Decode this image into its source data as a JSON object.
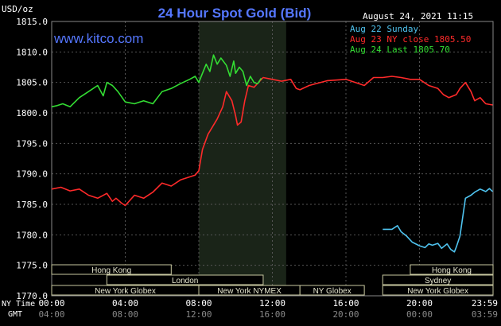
{
  "header": {
    "unit": "USD/oz",
    "title": "24 Hour Spot Gold (Bid)",
    "timestamp": "August 24, 2021 11:15",
    "watermark": "www.kitco.com"
  },
  "legend": [
    {
      "label": "Aug 22 Sunday",
      "color": "#4fc3ef"
    },
    {
      "label": "Aug 23 NY close 1805.50",
      "color": "#ff2a2a"
    },
    {
      "label": "Aug 24 Last 1805.70",
      "color": "#33dd33"
    }
  ],
  "axis": {
    "y_ticks": [
      "1815.0",
      "1810.0",
      "1805.0",
      "1800.0",
      "1795.0",
      "1790.0",
      "1785.0",
      "1780.0",
      "1775.0",
      "1770.0"
    ],
    "row1_label": "NY Time",
    "row2_label": "GMT",
    "ny_ticks": [
      "00:00",
      "04:00",
      "08:00",
      "12:00",
      "16:00",
      "20:00",
      "23:59"
    ],
    "gmt_ticks": [
      "04:00",
      "08:00",
      "12:00",
      "16:00",
      "20:00",
      "00:00",
      "03:59"
    ]
  },
  "sessions": [
    {
      "label": "Hong Kong",
      "row": 0,
      "start": 0.0,
      "end": 6.5
    },
    {
      "label": "Hong Kong",
      "row": 0,
      "start": 19.5,
      "end": 24.0
    },
    {
      "label": "London",
      "row": 1,
      "start": 3.0,
      "end": 11.5
    },
    {
      "label": "Sydney",
      "row": 1,
      "start": 18.0,
      "end": 24.0
    },
    {
      "label": "New York Globex",
      "row": 2,
      "start": 0.0,
      "end": 8.0
    },
    {
      "label": "New York NYMEX",
      "row": 2,
      "start": 8.0,
      "end": 13.5
    },
    {
      "label": "NY Globex",
      "row": 2,
      "start": 13.5,
      "end": 17.0
    },
    {
      "label": "New York Globex",
      "row": 2,
      "start": 18.0,
      "end": 24.0
    }
  ],
  "chart_data": {
    "type": "line",
    "ylim": [
      1770,
      1815
    ],
    "xlim": [
      0,
      24
    ],
    "x_unit": "hours (NY time)",
    "highlight_x": [
      8.0,
      12.75
    ],
    "grid": true,
    "series": [
      {
        "name": "Aug 22 Sunday",
        "color": "#4fc3ef",
        "x": [
          18.0,
          18.5,
          18.8,
          19.0,
          19.3,
          19.6,
          20.0,
          20.3,
          20.5,
          20.7,
          21.0,
          21.2,
          21.5,
          21.7,
          21.9,
          22.0,
          22.2,
          22.5,
          22.8,
          23.0,
          23.3,
          23.6,
          23.8,
          23.98
        ],
        "y": [
          1780.9,
          1780.9,
          1781.5,
          1780.5,
          1779.8,
          1778.8,
          1778.2,
          1777.9,
          1778.5,
          1778.3,
          1778.6,
          1777.8,
          1778.5,
          1777.6,
          1777.2,
          1778.0,
          1779.8,
          1786.0,
          1786.5,
          1787.0,
          1787.5,
          1787.1,
          1787.6,
          1787.1
        ]
      },
      {
        "name": "Aug 23 NY close 1805.50",
        "color": "#ff2a2a",
        "x": [
          0.0,
          0.5,
          1.0,
          1.5,
          2.0,
          2.5,
          3.0,
          3.3,
          3.5,
          3.8,
          4.0,
          4.5,
          5.0,
          5.5,
          6.0,
          6.5,
          7.0,
          7.5,
          7.8,
          8.0,
          8.2,
          8.5,
          8.7,
          9.0,
          9.3,
          9.5,
          9.8,
          10.0,
          10.1,
          10.3,
          10.5,
          10.7,
          11.0,
          11.5,
          12.0,
          12.5,
          13.0,
          13.3,
          13.5,
          14.0,
          15.0,
          16.0,
          17.0,
          17.5,
          18.0,
          18.5,
          19.0,
          19.5,
          20.0,
          20.5,
          21.0,
          21.3,
          21.6,
          22.0,
          22.2,
          22.5,
          22.8,
          23.0,
          23.3,
          23.6,
          23.98
        ],
        "y": [
          1787.5,
          1787.8,
          1787.2,
          1787.5,
          1786.5,
          1786.0,
          1786.8,
          1785.5,
          1786.0,
          1785.2,
          1784.8,
          1786.5,
          1786.0,
          1787.0,
          1788.5,
          1788.0,
          1789.0,
          1789.5,
          1789.8,
          1790.5,
          1794.0,
          1796.5,
          1797.5,
          1799.0,
          1801.0,
          1803.5,
          1802.0,
          1799.5,
          1798.0,
          1798.5,
          1802.0,
          1804.5,
          1804.2,
          1805.8,
          1805.5,
          1805.2,
          1805.5,
          1804.0,
          1803.8,
          1804.5,
          1805.3,
          1805.5,
          1804.5,
          1805.8,
          1805.8,
          1806.0,
          1805.8,
          1805.5,
          1805.5,
          1804.5,
          1804.0,
          1803.0,
          1802.5,
          1803.0,
          1804.0,
          1805.0,
          1803.5,
          1802.0,
          1802.5,
          1801.5,
          1801.3
        ]
      },
      {
        "name": "Aug 24 Last 1805.70",
        "color": "#33dd33",
        "x": [
          0.0,
          0.3,
          0.6,
          1.0,
          1.5,
          2.0,
          2.5,
          2.8,
          3.0,
          3.3,
          3.6,
          4.0,
          4.5,
          5.0,
          5.5,
          6.0,
          6.5,
          7.0,
          7.5,
          7.8,
          8.0,
          8.2,
          8.4,
          8.6,
          8.8,
          9.0,
          9.2,
          9.5,
          9.7,
          9.9,
          10.0,
          10.2,
          10.4,
          10.6,
          10.8,
          11.0,
          11.2,
          11.4
        ],
        "y": [
          1801.0,
          1801.2,
          1801.5,
          1801.0,
          1802.5,
          1803.5,
          1804.5,
          1802.8,
          1805.0,
          1804.5,
          1803.5,
          1801.8,
          1801.5,
          1802.0,
          1801.5,
          1803.5,
          1804.0,
          1804.8,
          1805.5,
          1806.0,
          1805.0,
          1806.5,
          1808.0,
          1806.8,
          1809.5,
          1808.0,
          1809.0,
          1807.8,
          1806.0,
          1808.5,
          1806.5,
          1807.5,
          1806.8,
          1804.5,
          1806.0,
          1805.0,
          1804.8,
          1805.7
        ]
      }
    ]
  }
}
